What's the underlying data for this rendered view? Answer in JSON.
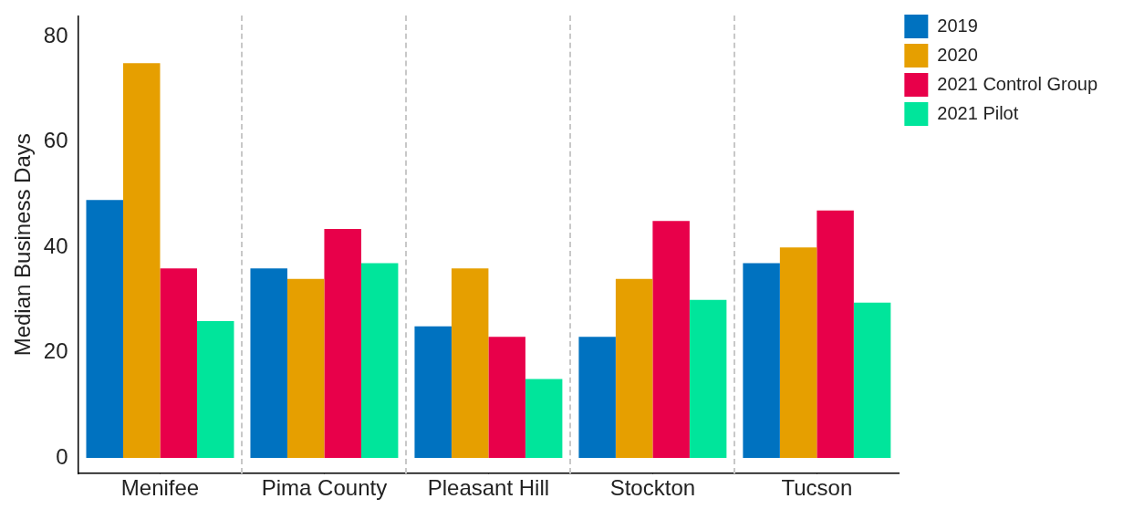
{
  "chart_data": {
    "type": "bar",
    "ylabel": "Median Business Days",
    "categories": [
      "Menifee",
      "Pima County",
      "Pleasant Hill",
      "Stockton",
      "Tucson"
    ],
    "series": [
      {
        "name": "2019",
        "color": "#0072c0",
        "values": [
          49,
          36,
          25,
          23,
          37
        ]
      },
      {
        "name": "2020",
        "color": "#e69f00",
        "values": [
          75,
          34,
          36,
          34,
          40
        ]
      },
      {
        "name": "2021 Control Group",
        "color": "#e8004a",
        "values": [
          36,
          43.5,
          23,
          45,
          47
        ]
      },
      {
        "name": "2021 Pilot",
        "color": "#00e59b",
        "values": [
          26,
          37,
          15,
          30,
          29.5
        ]
      }
    ],
    "ylim": [
      -3,
      84
    ],
    "yticks": [
      0,
      20,
      40,
      60,
      80
    ],
    "grid": false,
    "legend": "top right"
  }
}
